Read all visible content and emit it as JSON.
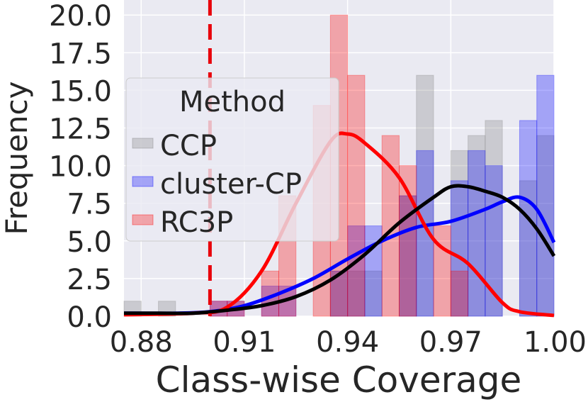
{
  "chart_data": {
    "type": "histogram",
    "xlabel": "Class-wise Coverage",
    "ylabel": "Frequency",
    "xlim": [
      0.875,
      1.0
    ],
    "ylim": [
      0,
      21
    ],
    "xticks": [
      0.88,
      0.91,
      0.94,
      0.97,
      1.0
    ],
    "xtick_labels": [
      "0.88",
      "0.91",
      "0.94",
      "0.97",
      "1.00"
    ],
    "yticks": [
      0,
      2.5,
      5,
      7.5,
      10,
      12.5,
      15,
      17.5,
      20
    ],
    "ytick_labels": [
      "0.0",
      "2.5",
      "5.0",
      "7.5",
      "10.0",
      "12.5",
      "15.0",
      "17.5",
      "20.0"
    ],
    "grid": true,
    "background": "#eaeaf2",
    "reference_line": {
      "x": 0.9,
      "color": "#e8000b",
      "style": "dashed"
    },
    "legend": {
      "title": "Method",
      "position": "upper-left"
    },
    "bin_width": 0.005,
    "series": [
      {
        "name": "CCP",
        "color": "#808080",
        "bins": [
          {
            "x0": 0.875,
            "count": 1
          },
          {
            "x0": 0.885,
            "count": 1
          },
          {
            "x0": 0.935,
            "count": 3
          },
          {
            "x0": 0.94,
            "count": 3
          },
          {
            "x0": 0.945,
            "count": 3
          },
          {
            "x0": 0.955,
            "count": 8
          },
          {
            "x0": 0.96,
            "count": 16
          },
          {
            "x0": 0.97,
            "count": 11
          },
          {
            "x0": 0.975,
            "count": 12
          },
          {
            "x0": 0.98,
            "count": 13
          },
          {
            "x0": 0.99,
            "count": 9
          },
          {
            "x0": 0.995,
            "count": 12
          }
        ],
        "kde": [
          [
            0.875,
            0.2
          ],
          [
            0.885,
            0.2
          ],
          [
            0.895,
            0.2
          ],
          [
            0.905,
            0.4
          ],
          [
            0.915,
            0.7
          ],
          [
            0.925,
            1.3
          ],
          [
            0.935,
            2.4
          ],
          [
            0.945,
            4.1
          ],
          [
            0.955,
            6.2
          ],
          [
            0.965,
            7.9
          ],
          [
            0.97,
            8.6
          ],
          [
            0.975,
            8.6
          ],
          [
            0.98,
            8.3
          ],
          [
            0.985,
            7.9
          ],
          [
            0.99,
            7.1
          ],
          [
            0.995,
            5.8
          ],
          [
            1.0,
            4.0
          ]
        ]
      },
      {
        "name": "cluster-CP",
        "color": "#0000ff",
        "bins": [
          {
            "x0": 0.9,
            "count": 1
          },
          {
            "x0": 0.905,
            "count": 1
          },
          {
            "x0": 0.915,
            "count": 2
          },
          {
            "x0": 0.92,
            "count": 2
          },
          {
            "x0": 0.935,
            "count": 3
          },
          {
            "x0": 0.94,
            "count": 6
          },
          {
            "x0": 0.945,
            "count": 6
          },
          {
            "x0": 0.955,
            "count": 8
          },
          {
            "x0": 0.96,
            "count": 11
          },
          {
            "x0": 0.97,
            "count": 9
          },
          {
            "x0": 0.975,
            "count": 11
          },
          {
            "x0": 0.98,
            "count": 10
          },
          {
            "x0": 0.99,
            "count": 13
          },
          {
            "x0": 0.995,
            "count": 16
          }
        ],
        "kde": [
          [
            0.875,
            0.2
          ],
          [
            0.89,
            0.2
          ],
          [
            0.9,
            0.3
          ],
          [
            0.91,
            0.7
          ],
          [
            0.92,
            1.5
          ],
          [
            0.93,
            2.5
          ],
          [
            0.94,
            3.8
          ],
          [
            0.95,
            5.0
          ],
          [
            0.96,
            5.9
          ],
          [
            0.97,
            6.3
          ],
          [
            0.98,
            7.1
          ],
          [
            0.985,
            7.6
          ],
          [
            0.99,
            7.9
          ],
          [
            0.995,
            7.1
          ],
          [
            1.0,
            4.9
          ]
        ]
      },
      {
        "name": "RC3P",
        "color": "#ff0000",
        "bins": [
          {
            "x0": 0.9,
            "count": 1
          },
          {
            "x0": 0.905,
            "count": 1
          },
          {
            "x0": 0.915,
            "count": 3
          },
          {
            "x0": 0.92,
            "count": 8
          },
          {
            "x0": 0.93,
            "count": 14
          },
          {
            "x0": 0.935,
            "count": 20
          },
          {
            "x0": 0.94,
            "count": 16
          },
          {
            "x0": 0.95,
            "count": 12
          },
          {
            "x0": 0.955,
            "count": 10
          },
          {
            "x0": 0.965,
            "count": 6
          },
          {
            "x0": 0.97,
            "count": 3
          }
        ],
        "kde": [
          [
            0.875,
            0.1
          ],
          [
            0.895,
            0.2
          ],
          [
            0.905,
            0.6
          ],
          [
            0.915,
            3.0
          ],
          [
            0.925,
            7.5
          ],
          [
            0.935,
            11.6
          ],
          [
            0.94,
            12.1
          ],
          [
            0.945,
            11.5
          ],
          [
            0.955,
            9.2
          ],
          [
            0.965,
            5.1
          ],
          [
            0.975,
            3.5
          ],
          [
            0.985,
            0.9
          ],
          [
            0.99,
            0.3
          ],
          [
            1.0,
            0.05
          ]
        ]
      }
    ]
  }
}
